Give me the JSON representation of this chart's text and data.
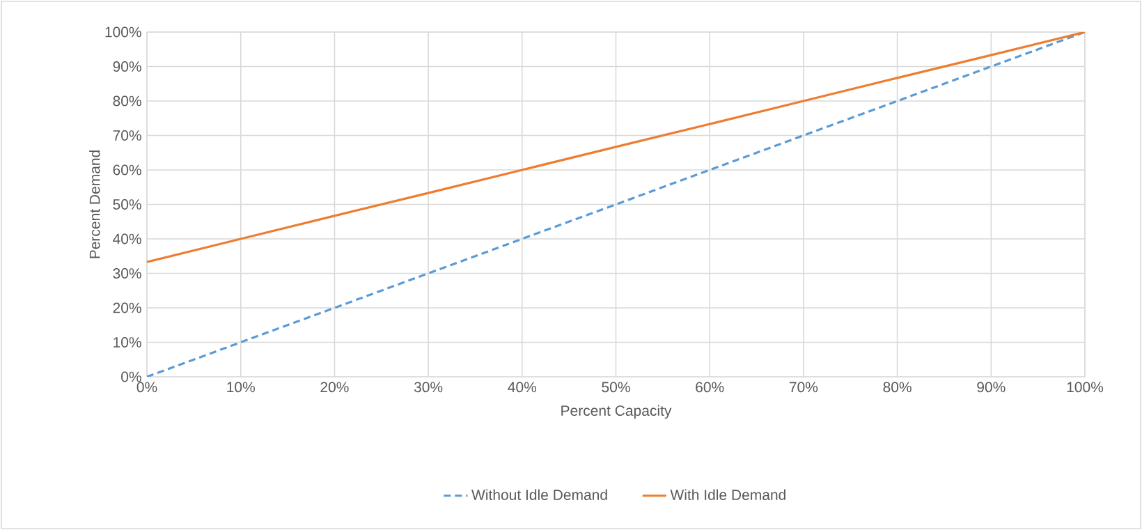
{
  "chart_data": {
    "type": "line",
    "xlabel": "Percent Capacity",
    "ylabel": "Percent Demand",
    "x": [
      0,
      10,
      20,
      30,
      40,
      50,
      60,
      70,
      80,
      90,
      100
    ],
    "series": [
      {
        "name": "Without Idle Demand",
        "color": "#5b9bd5",
        "line_style": "dashed",
        "values": [
          0,
          10,
          20,
          30,
          40,
          50,
          60,
          70,
          80,
          90,
          100
        ]
      },
      {
        "name": "With Idle Demand",
        "color": "#ed7d31",
        "line_style": "solid",
        "values": [
          33.3,
          40,
          46.7,
          53.3,
          60,
          66.7,
          73.3,
          80,
          86.7,
          93.3,
          100
        ]
      }
    ],
    "xlim": [
      0,
      100
    ],
    "ylim": [
      0,
      100
    ],
    "xticks": [
      {
        "value": 0,
        "label": "0%"
      },
      {
        "value": 10,
        "label": "10%"
      },
      {
        "value": 20,
        "label": "20%"
      },
      {
        "value": 30,
        "label": "30%"
      },
      {
        "value": 40,
        "label": "40%"
      },
      {
        "value": 50,
        "label": "50%"
      },
      {
        "value": 60,
        "label": "60%"
      },
      {
        "value": 70,
        "label": "70%"
      },
      {
        "value": 80,
        "label": "80%"
      },
      {
        "value": 90,
        "label": "90%"
      },
      {
        "value": 100,
        "label": "100%"
      }
    ],
    "yticks": [
      {
        "value": 0,
        "label": "0%"
      },
      {
        "value": 10,
        "label": "10%"
      },
      {
        "value": 20,
        "label": "20%"
      },
      {
        "value": 30,
        "label": "30%"
      },
      {
        "value": 40,
        "label": "40%"
      },
      {
        "value": 50,
        "label": "50%"
      },
      {
        "value": 60,
        "label": "60%"
      },
      {
        "value": 70,
        "label": "70%"
      },
      {
        "value": 80,
        "label": "80%"
      },
      {
        "value": 90,
        "label": "90%"
      },
      {
        "value": 100,
        "label": "100%"
      }
    ],
    "grid": true,
    "legend": "bottom",
    "marker": "none"
  }
}
